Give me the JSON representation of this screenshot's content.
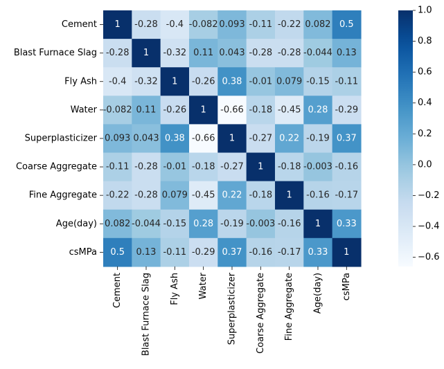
{
  "chart_data": {
    "type": "heatmap",
    "title": "",
    "xlabel": "",
    "ylabel": "",
    "row_labels": [
      "Cement",
      "Blast Furnace Slag",
      "Fly Ash",
      "Water",
      "Superplasticizer",
      "Coarse Aggregate",
      "Fine Aggregate",
      "Age(day)",
      "csMPa"
    ],
    "col_labels": [
      "Cement",
      "Blast Furnace Slag",
      "Fly Ash",
      "Water",
      "Superplasticizer",
      "Coarse Aggregate",
      "Fine Aggregate",
      "Age(day)",
      "csMPa"
    ],
    "values": [
      [
        1,
        -0.28,
        -0.4,
        -0.082,
        0.093,
        -0.11,
        -0.22,
        0.082,
        0.5
      ],
      [
        -0.28,
        1,
        -0.32,
        0.11,
        0.043,
        -0.28,
        -0.28,
        -0.044,
        0.13
      ],
      [
        -0.4,
        -0.32,
        1,
        -0.26,
        0.38,
        -0.01,
        0.079,
        -0.15,
        -0.11
      ],
      [
        -0.082,
        0.11,
        -0.26,
        1,
        -0.66,
        -0.18,
        -0.45,
        0.28,
        -0.29
      ],
      [
        0.093,
        0.043,
        0.38,
        -0.66,
        1,
        -0.27,
        0.22,
        -0.19,
        0.37
      ],
      [
        -0.11,
        -0.28,
        -0.01,
        -0.18,
        -0.27,
        1,
        -0.18,
        -0.003,
        -0.16
      ],
      [
        -0.22,
        -0.28,
        0.079,
        -0.45,
        0.22,
        -0.18,
        1,
        -0.16,
        -0.17
      ],
      [
        0.082,
        -0.044,
        -0.15,
        0.28,
        -0.19,
        -0.003,
        -0.16,
        1,
        0.33
      ],
      [
        0.5,
        0.13,
        -0.11,
        -0.29,
        0.37,
        -0.16,
        -0.17,
        0.33,
        1
      ]
    ],
    "annotations": [
      [
        "1",
        "-0.28",
        "-0.4",
        "-0.082",
        "0.093",
        "-0.11",
        "-0.22",
        "0.082",
        "0.5"
      ],
      [
        "-0.28",
        "1",
        "-0.32",
        "0.11",
        "0.043",
        "-0.28",
        "-0.28",
        "-0.044",
        "0.13"
      ],
      [
        "-0.4",
        "-0.32",
        "1",
        "-0.26",
        "0.38",
        "-0.01",
        "0.079",
        "-0.15",
        "-0.11"
      ],
      [
        "-0.082",
        "0.11",
        "-0.26",
        "1",
        "-0.66",
        "-0.18",
        "-0.45",
        "0.28",
        "-0.29"
      ],
      [
        "0.093",
        "0.043",
        "0.38",
        "-0.66",
        "1",
        "-0.27",
        "0.22",
        "-0.19",
        "0.37"
      ],
      [
        "-0.11",
        "-0.28",
        "-0.01",
        "-0.18",
        "-0.27",
        "1",
        "-0.18",
        "-0.003",
        "-0.16"
      ],
      [
        "-0.22",
        "-0.28",
        "0.079",
        "-0.45",
        "0.22",
        "-0.18",
        "1",
        "-0.16",
        "-0.17"
      ],
      [
        "0.082",
        "-0.044",
        "-0.15",
        "0.28",
        "-0.19",
        "-0.003",
        "-0.16",
        "1",
        "0.33"
      ],
      [
        "0.5",
        "0.13",
        "-0.11",
        "-0.29",
        "0.37",
        "-0.16",
        "-0.17",
        "0.33",
        "1"
      ]
    ],
    "colormap": "Blues",
    "vmin": -0.66,
    "vmax": 1,
    "colorbar": {
      "ticks": [
        -0.6,
        -0.4,
        -0.2,
        0.0,
        0.2,
        0.4,
        0.6,
        0.8,
        1.0
      ],
      "tick_labels": [
        "−0.6",
        "−0.4",
        "−0.2",
        "0.0",
        "0.2",
        "0.4",
        "0.6",
        "0.8",
        "1.0"
      ]
    },
    "text_color_dark": "#262626",
    "text_color_light": "#ffffff"
  }
}
